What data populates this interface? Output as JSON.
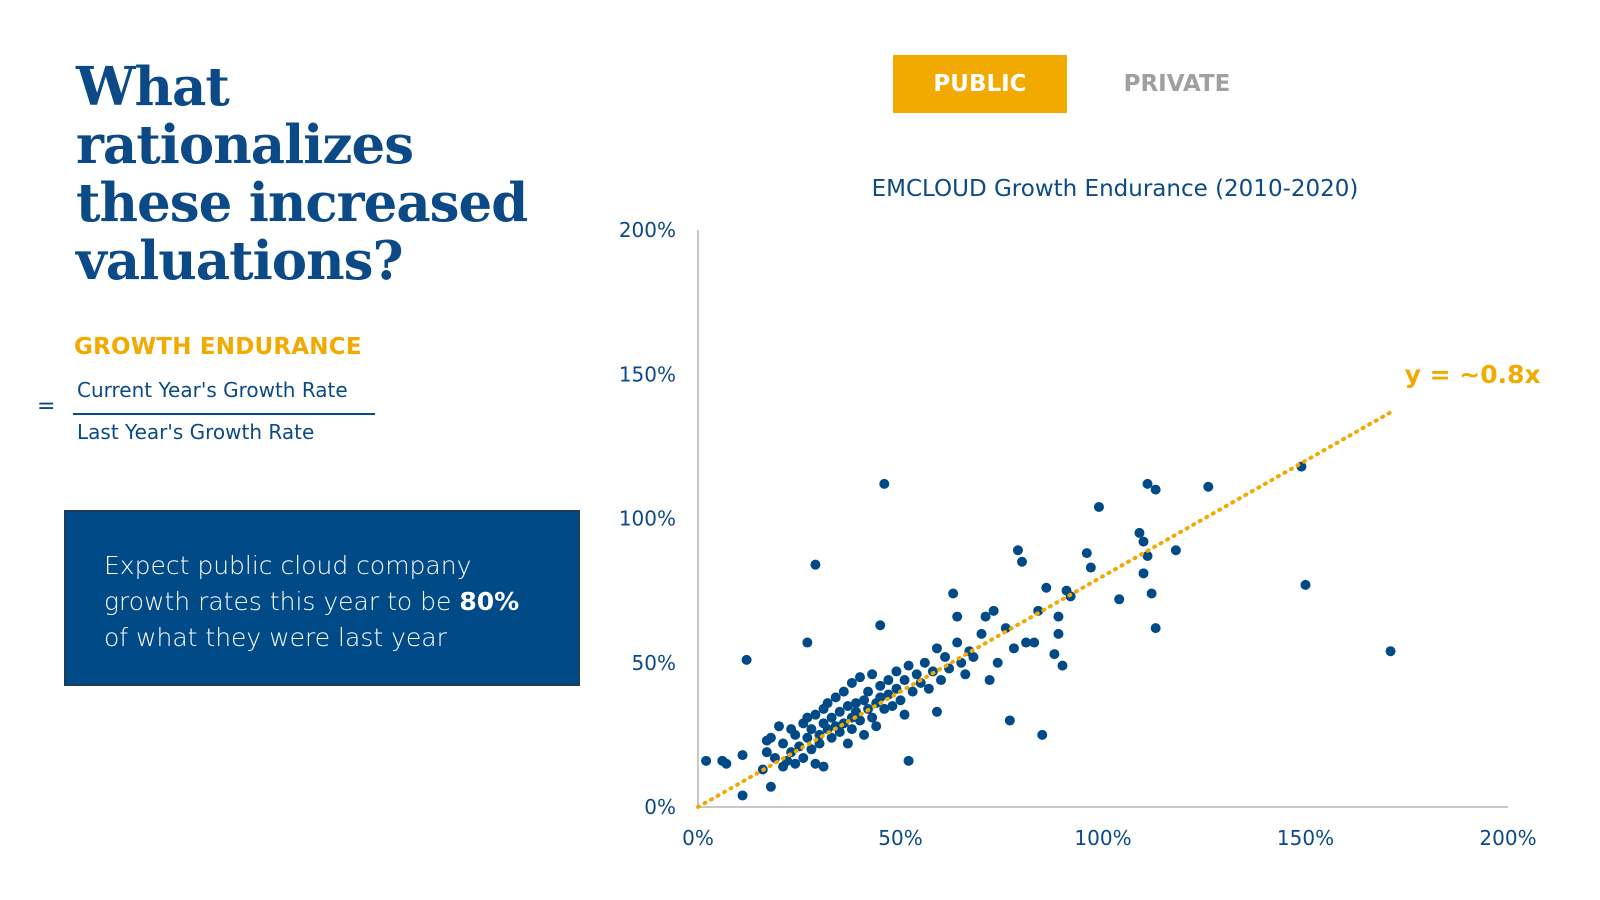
{
  "headline": "What rationalizes these increased valuations?",
  "formula": {
    "label": "GROWTH ENDURANCE",
    "equals": "=",
    "numerator": "Current Year's Growth Rate",
    "denominator": "Last Year's Growth Rate"
  },
  "callout": {
    "text_before": "Expect public cloud company growth rates this year to be ",
    "emphasis": "80%",
    "text_after": " of what they were last year"
  },
  "tabs": [
    {
      "label": "PUBLIC",
      "active": true
    },
    {
      "label": "PRIVATE",
      "active": false
    }
  ],
  "colors": {
    "navy": "#004b87",
    "gold": "#f2a900",
    "inactive_tab": "#a0a0a0"
  },
  "chart_data": {
    "type": "scatter",
    "title": "EMCLOUD Growth Endurance (2010-2020)",
    "xlabel": "",
    "ylabel": "",
    "xlim": [
      0,
      200
    ],
    "ylim": [
      0,
      200
    ],
    "x_ticks": [
      "0%",
      "50%",
      "100%",
      "150%",
      "200%"
    ],
    "y_ticks": [
      "0%",
      "50%",
      "100%",
      "150%",
      "200%"
    ],
    "grid": false,
    "trendline": {
      "label": "y = ~0.8x",
      "slope": 0.8,
      "x_range": [
        0,
        171
      ],
      "style": "dotted"
    },
    "points": [
      [
        2,
        16
      ],
      [
        6,
        16
      ],
      [
        7,
        15
      ],
      [
        11,
        18
      ],
      [
        11,
        4
      ],
      [
        12,
        51
      ],
      [
        16,
        13
      ],
      [
        17,
        23
      ],
      [
        17,
        19
      ],
      [
        18,
        7
      ],
      [
        18,
        24
      ],
      [
        19,
        17
      ],
      [
        20,
        28
      ],
      [
        21,
        14
      ],
      [
        21,
        22
      ],
      [
        22,
        16
      ],
      [
        23,
        27
      ],
      [
        23,
        19
      ],
      [
        24,
        25
      ],
      [
        24,
        15
      ],
      [
        25,
        21
      ],
      [
        26,
        29
      ],
      [
        26,
        17
      ],
      [
        27,
        24
      ],
      [
        27,
        31
      ],
      [
        27,
        57
      ],
      [
        28,
        20
      ],
      [
        28,
        27
      ],
      [
        29,
        15
      ],
      [
        29,
        84
      ],
      [
        29,
        32
      ],
      [
        30,
        25
      ],
      [
        30,
        22
      ],
      [
        31,
        29
      ],
      [
        31,
        34
      ],
      [
        31,
        14
      ],
      [
        32,
        27
      ],
      [
        32,
        36
      ],
      [
        33,
        31
      ],
      [
        33,
        24
      ],
      [
        34,
        28
      ],
      [
        34,
        38
      ],
      [
        35,
        26
      ],
      [
        35,
        33
      ],
      [
        36,
        40
      ],
      [
        36,
        29
      ],
      [
        37,
        35
      ],
      [
        37,
        22
      ],
      [
        38,
        31
      ],
      [
        38,
        27
      ],
      [
        38,
        43
      ],
      [
        39,
        36
      ],
      [
        39,
        33
      ],
      [
        40,
        30
      ],
      [
        40,
        45
      ],
      [
        41,
        37
      ],
      [
        41,
        25
      ],
      [
        42,
        34
      ],
      [
        42,
        40
      ],
      [
        43,
        31
      ],
      [
        43,
        46
      ],
      [
        44,
        36
      ],
      [
        44,
        28
      ],
      [
        45,
        42
      ],
      [
        45,
        38
      ],
      [
        45,
        63
      ],
      [
        46,
        34
      ],
      [
        46,
        112
      ],
      [
        47,
        44
      ],
      [
        47,
        39
      ],
      [
        48,
        35
      ],
      [
        49,
        41
      ],
      [
        49,
        47
      ],
      [
        50,
        37
      ],
      [
        51,
        44
      ],
      [
        51,
        32
      ],
      [
        52,
        49
      ],
      [
        52,
        16
      ],
      [
        53,
        40
      ],
      [
        54,
        46
      ],
      [
        55,
        43
      ],
      [
        56,
        50
      ],
      [
        57,
        41
      ],
      [
        58,
        47
      ],
      [
        59,
        33
      ],
      [
        59,
        55
      ],
      [
        60,
        44
      ],
      [
        61,
        52
      ],
      [
        62,
        48
      ],
      [
        63,
        74
      ],
      [
        64,
        57
      ],
      [
        64,
        66
      ],
      [
        65,
        50
      ],
      [
        66,
        46
      ],
      [
        67,
        54
      ],
      [
        68,
        52
      ],
      [
        70,
        60
      ],
      [
        71,
        66
      ],
      [
        72,
        44
      ],
      [
        73,
        68
      ],
      [
        74,
        50
      ],
      [
        76,
        62
      ],
      [
        77,
        30
      ],
      [
        78,
        55
      ],
      [
        79,
        89
      ],
      [
        80,
        85
      ],
      [
        81,
        57
      ],
      [
        83,
        57
      ],
      [
        84,
        68
      ],
      [
        85,
        25
      ],
      [
        86,
        76
      ],
      [
        88,
        53
      ],
      [
        89,
        60
      ],
      [
        89,
        66
      ],
      [
        90,
        49
      ],
      [
        91,
        75
      ],
      [
        92,
        73
      ],
      [
        96,
        88
      ],
      [
        97,
        83
      ],
      [
        99,
        104
      ],
      [
        104,
        72
      ],
      [
        109,
        95
      ],
      [
        110,
        92
      ],
      [
        110,
        81
      ],
      [
        111,
        87
      ],
      [
        111,
        112
      ],
      [
        112,
        74
      ],
      [
        113,
        110
      ],
      [
        113,
        62
      ],
      [
        118,
        89
      ],
      [
        126,
        111
      ],
      [
        149,
        118
      ],
      [
        150,
        77
      ],
      [
        171,
        54
      ]
    ]
  }
}
